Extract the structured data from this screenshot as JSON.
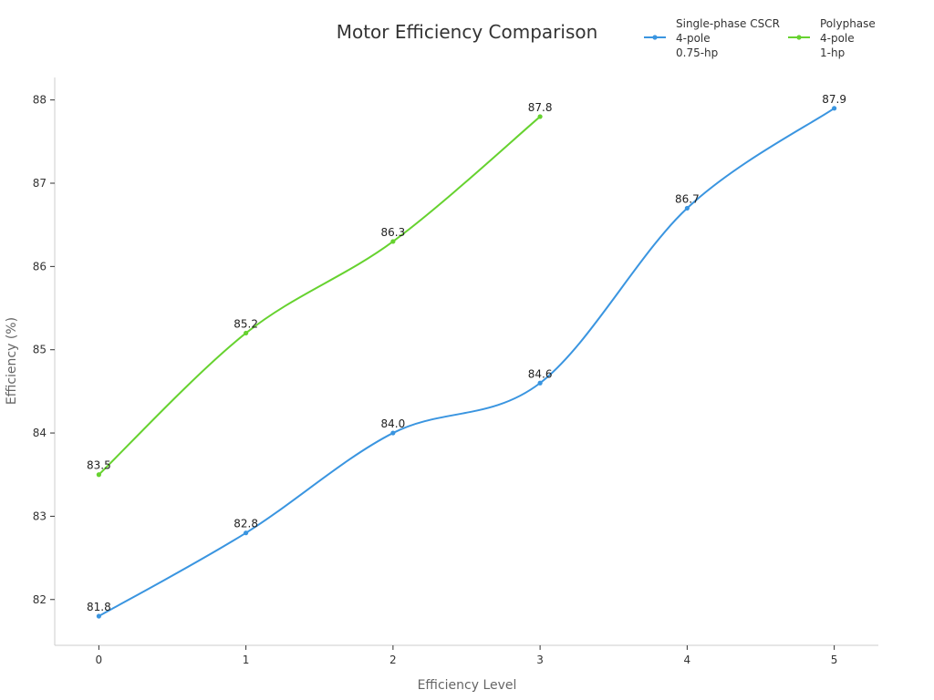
{
  "chart_data": {
    "type": "line",
    "title": "Motor Efficiency Comparison",
    "xlabel": "Efficiency Level",
    "ylabel": "Efficiency (%)",
    "x": [
      0,
      1,
      2,
      3,
      4,
      5
    ],
    "xlim": [
      -0.3,
      5.3
    ],
    "ylim": [
      81.45,
      88.27
    ],
    "x_ticks": [
      "0",
      "1",
      "2",
      "3",
      "4",
      "5"
    ],
    "y_ticks": [
      "82",
      "83",
      "84",
      "85",
      "86",
      "87",
      "88"
    ],
    "legend_position": "top-right",
    "grid": false,
    "series": [
      {
        "name": "Single-phase CSCR 4-pole 0.75-hp",
        "legend_lines": [
          "Single-phase CSCR",
          "4-pole",
          "0.75-hp"
        ],
        "color": "#3a95e0",
        "x": [
          0,
          1,
          2,
          3,
          4,
          5
        ],
        "values": [
          81.8,
          82.8,
          84.0,
          84.6,
          86.7,
          87.9
        ],
        "labels": [
          "81.8",
          "82.8",
          "84.0",
          "84.6",
          "86.7",
          "87.9"
        ]
      },
      {
        "name": "Polyphase 4-pole 1-hp",
        "legend_lines": [
          "Polyphase",
          "4-pole",
          "1-hp"
        ],
        "color": "#66d22f",
        "x": [
          0,
          1,
          2,
          3
        ],
        "values": [
          83.5,
          85.2,
          86.3,
          87.8
        ],
        "labels": [
          "83.5",
          "85.2",
          "86.3",
          "87.8"
        ]
      }
    ]
  }
}
